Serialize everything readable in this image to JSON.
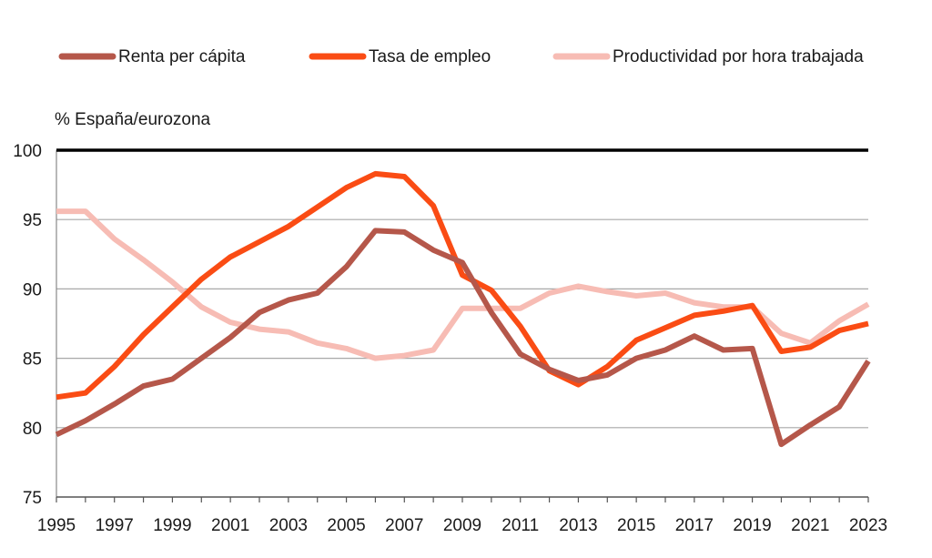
{
  "chart_data": {
    "type": "line",
    "ylabel": "% España/eurozona",
    "x": [
      1995,
      1996,
      1997,
      1998,
      1999,
      2000,
      2001,
      2002,
      2003,
      2004,
      2005,
      2006,
      2007,
      2008,
      2009,
      2010,
      2011,
      2012,
      2013,
      2014,
      2015,
      2016,
      2017,
      2018,
      2019,
      2020,
      2021,
      2022,
      2023
    ],
    "x_tick_labels": [
      "1995",
      "1997",
      "1999",
      "2001",
      "2003",
      "2005",
      "2007",
      "2009",
      "2011",
      "2013",
      "2015",
      "2017",
      "2019",
      "2021",
      "2023"
    ],
    "y_tick_labels": [
      "75",
      "80",
      "85",
      "90",
      "95",
      "100"
    ],
    "ylim": [
      75,
      100
    ],
    "xlim": [
      1995,
      2023
    ],
    "reference_line": 100,
    "grid": true,
    "legend_position": "top",
    "series": [
      {
        "name": "Renta per cápita",
        "color": "#b5574a",
        "values": [
          79.5,
          80.5,
          81.7,
          83.0,
          83.5,
          85.0,
          86.5,
          88.3,
          89.2,
          89.7,
          91.6,
          94.2,
          94.1,
          92.8,
          91.9,
          88.3,
          85.3,
          84.2,
          83.4,
          83.8,
          85.0,
          85.6,
          86.6,
          85.6,
          85.7,
          78.8,
          80.2,
          81.5,
          84.8
        ]
      },
      {
        "name": "Tasa de empleo",
        "color": "#fa4c14",
        "values": [
          82.2,
          82.5,
          84.4,
          86.7,
          88.7,
          90.7,
          92.3,
          93.4,
          94.5,
          95.9,
          97.3,
          98.3,
          98.1,
          96.0,
          91.0,
          89.9,
          87.3,
          84.1,
          83.1,
          84.4,
          86.3,
          87.2,
          88.1,
          88.4,
          88.8,
          85.5,
          85.8,
          87.0,
          87.5
        ]
      },
      {
        "name": "Productividad por hora trabajada",
        "color": "#f7bcb4",
        "values": [
          95.6,
          95.6,
          93.6,
          92.1,
          90.5,
          88.7,
          87.6,
          87.1,
          86.9,
          86.1,
          85.7,
          85.0,
          85.2,
          85.6,
          88.6,
          88.6,
          88.6,
          89.7,
          90.2,
          89.8,
          89.5,
          89.7,
          89.0,
          88.7,
          88.7,
          86.8,
          86.1,
          87.7,
          88.9
        ]
      }
    ]
  }
}
